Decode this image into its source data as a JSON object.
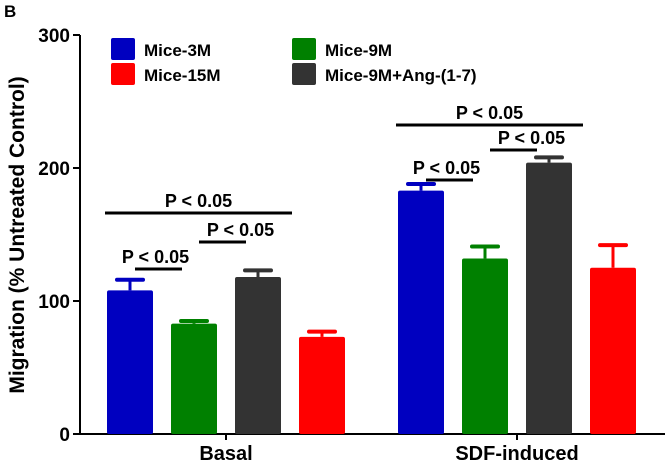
{
  "panel_label": "B",
  "chart_data": {
    "type": "bar",
    "title": "",
    "xlabel": "",
    "ylabel": "Migration (% Untreated Control)",
    "ylim": [
      0,
      300
    ],
    "yticks": [
      0,
      100,
      200,
      300
    ],
    "ytick_labels": [
      "0",
      "100",
      "200",
      "300"
    ],
    "categories": [
      "Basal",
      "SDF-induced"
    ],
    "grid": false,
    "legend_position": "top-left",
    "series": [
      {
        "name": "Mice-3M",
        "color": "#0000C0",
        "values": [
          108,
          183
        ],
        "errors": [
          8,
          5
        ]
      },
      {
        "name": "Mice-9M",
        "color": "#008000",
        "values": [
          83,
          132
        ],
        "errors": [
          2,
          9
        ]
      },
      {
        "name": "Mice-9M+Ang-(1-7)",
        "color": "#333333",
        "values": [
          118,
          204
        ],
        "errors": [
          5,
          4
        ]
      },
      {
        "name": "Mice-15M",
        "color": "#FF0000",
        "values": [
          73,
          125
        ],
        "errors": [
          4,
          17
        ]
      }
    ],
    "legend_order": [
      "Mice-3M",
      "Mice-9M",
      "Mice-15M",
      "Mice-9M+Ang-(1-7)"
    ],
    "annotations": [
      {
        "text": "P < 0.05",
        "group": "Basal",
        "from": 0,
        "to": 1,
        "level": 1
      },
      {
        "text": "P < 0.05",
        "group": "Basal",
        "from": 1,
        "to": 2,
        "level": 2
      },
      {
        "text": "P < 0.05",
        "group": "Basal",
        "from": 0,
        "to": 3,
        "level": 3
      },
      {
        "text": "P < 0.05",
        "group": "SDF-induced",
        "from": 0,
        "to": 1,
        "level": 1
      },
      {
        "text": "P < 0.05",
        "group": "SDF-induced",
        "from": 1,
        "to": 2,
        "level": 2
      },
      {
        "text": "P < 0.05",
        "group": "SDF-induced",
        "from": 0,
        "to": 3,
        "level": 3
      }
    ]
  }
}
